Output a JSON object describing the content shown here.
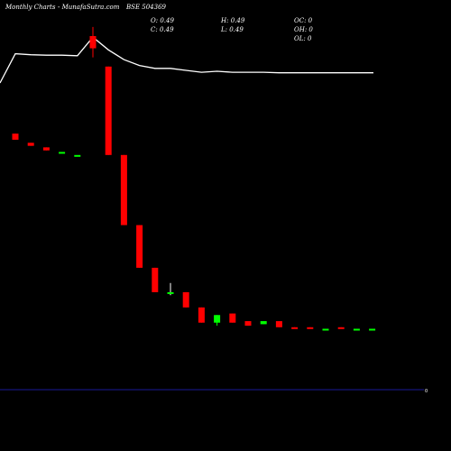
{
  "header": {
    "title": "Monthly Charts",
    "site": "- MunafaSutra.com",
    "symbol": "BSE 504369"
  },
  "ohlc": {
    "open": "O: 0.49",
    "close": "C: 0.49",
    "high": "H: 0.49",
    "low": "L: 0.49",
    "oc": "OC: 0",
    "oh": "OH: 0",
    "ol": "OL: 0"
  },
  "axis": {
    "zero_label": "0"
  },
  "colors": {
    "background": "#000000",
    "bear": "#ff0000",
    "bull": "#00ff00",
    "price_line": "#ffffff",
    "volume_axis": "#1a1a99"
  },
  "chart_data": {
    "type": "candlestick",
    "title": "BSE 504369",
    "xlabel": "",
    "ylabel": "",
    "ylim": [
      0,
      100
    ],
    "candles": [
      {
        "open": 68,
        "close": 66,
        "high": 68,
        "low": 66,
        "dir": "down"
      },
      {
        "open": 65,
        "close": 64,
        "high": 65,
        "low": 64,
        "dir": "down"
      },
      {
        "open": 63.5,
        "close": 62.5,
        "high": 63.5,
        "low": 62.5,
        "dir": "down"
      },
      {
        "open": 62,
        "close": 62,
        "high": 62,
        "low": 62,
        "dir": "flat"
      },
      {
        "open": 61,
        "close": 61,
        "high": 61,
        "low": 61,
        "dir": "flat"
      },
      {
        "open": 100,
        "close": 96,
        "high": 103,
        "low": 93,
        "dir": "down"
      },
      {
        "open": 90,
        "close": 61,
        "high": 90,
        "low": 61,
        "dir": "down"
      },
      {
        "open": 61,
        "close": 38,
        "high": 61,
        "low": 38,
        "dir": "down"
      },
      {
        "open": 38,
        "close": 24,
        "high": 38,
        "low": 24,
        "dir": "down"
      },
      {
        "open": 24,
        "close": 16,
        "high": 24,
        "low": 16,
        "dir": "down"
      },
      {
        "open": 16,
        "close": 16,
        "high": 19,
        "low": 15,
        "dir": "flat"
      },
      {
        "open": 16,
        "close": 11,
        "high": 16,
        "low": 11,
        "dir": "down"
      },
      {
        "open": 11,
        "close": 6,
        "high": 11,
        "low": 6,
        "dir": "down"
      },
      {
        "open": 6,
        "close": 8.5,
        "high": 8.5,
        "low": 5,
        "dir": "up"
      },
      {
        "open": 9,
        "close": 6,
        "high": 9,
        "low": 6,
        "dir": "down"
      },
      {
        "open": 6.5,
        "close": 5,
        "high": 6.5,
        "low": 5,
        "dir": "down"
      },
      {
        "open": 5.5,
        "close": 6.5,
        "high": 6.5,
        "low": 5.5,
        "dir": "up"
      },
      {
        "open": 6.5,
        "close": 4.5,
        "high": 6.5,
        "low": 4.5,
        "dir": "down"
      },
      {
        "open": 4.5,
        "close": 4,
        "high": 4.5,
        "low": 4,
        "dir": "down"
      },
      {
        "open": 4.5,
        "close": 4,
        "high": 4.5,
        "low": 4,
        "dir": "down"
      },
      {
        "open": 4,
        "close": 4,
        "high": 4,
        "low": 4,
        "dir": "flat"
      },
      {
        "open": 4.5,
        "close": 4,
        "high": 4.5,
        "low": 4,
        "dir": "down"
      },
      {
        "open": 4,
        "close": 4,
        "high": 4,
        "low": 4,
        "dir": "flat"
      },
      {
        "open": 4,
        "close": 4,
        "high": 4,
        "low": 4,
        "dir": "flat"
      }
    ],
    "line_values": [
      100,
      130,
      129,
      128.5,
      128.5,
      128,
      147,
      134,
      124,
      118,
      115,
      115,
      113,
      111,
      112,
      111,
      111,
      111,
      110.5,
      110.5,
      110.5,
      110.5,
      110.5,
      110.5,
      110.5
    ],
    "line_ylim": [
      0,
      150
    ]
  }
}
